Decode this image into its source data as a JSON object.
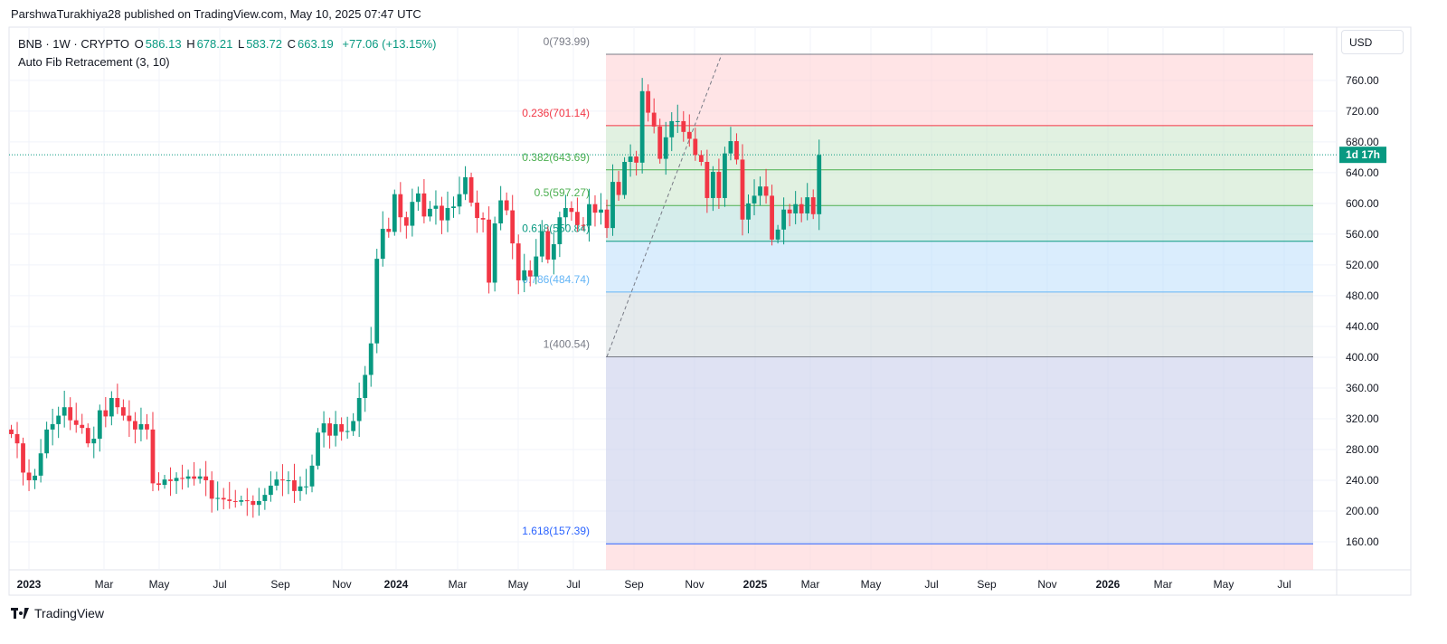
{
  "publisher": "ParshwaTurakhiya28 published on TradingView.com, May 10, 2025 07:47 UTC",
  "legend": {
    "symbol": "BNB · 1W · CRYPTO",
    "open_label": "O",
    "open": "586.13",
    "high_label": "H",
    "high": "678.21",
    "low_label": "L",
    "low": "583.72",
    "close_label": "C",
    "close": "663.19",
    "change": "+77.06 (+13.15%)",
    "indicator": "Auto Fib Retracement (3, 10)"
  },
  "currency": "USD",
  "countdown": "1d 17h",
  "footer_brand": "TradingView",
  "colors": {
    "up": "#089981",
    "down": "#f23645",
    "grid": "#f0f3fa",
    "text": "#131722"
  },
  "chart_data": {
    "type": "candlestick",
    "interval": "1W",
    "ylim": [
      120,
      800
    ],
    "yticks": [
      160,
      200,
      240,
      280,
      320,
      360,
      400,
      440,
      480,
      520,
      560,
      600,
      640,
      680,
      720,
      760
    ],
    "x_tick_labels": [
      "2023",
      "Mar",
      "May",
      "Jul",
      "Sep",
      "Nov",
      "2024",
      "Mar",
      "May",
      "Jul",
      "Sep",
      "Nov",
      "2025",
      "Mar",
      "May",
      "Jul",
      "Sep",
      "Nov",
      "2026",
      "Mar",
      "May",
      "Jul"
    ],
    "current_price": 663.19,
    "candles": [
      [
        306,
        300
      ],
      [
        300,
        288
      ],
      [
        288,
        250
      ],
      [
        250,
        240
      ],
      [
        240,
        246
      ],
      [
        246,
        275
      ],
      [
        275,
        306
      ],
      [
        306,
        313
      ],
      [
        313,
        324
      ],
      [
        324,
        335
      ],
      [
        335,
        318
      ],
      [
        318,
        312
      ],
      [
        312,
        308
      ],
      [
        308,
        288
      ],
      [
        288,
        294
      ],
      [
        294,
        331
      ],
      [
        331,
        323
      ],
      [
        323,
        347
      ],
      [
        347,
        335
      ],
      [
        335,
        324
      ],
      [
        324,
        317
      ],
      [
        317,
        306
      ],
      [
        306,
        313
      ],
      [
        313,
        306
      ],
      [
        306,
        236
      ],
      [
        236,
        234
      ],
      [
        234,
        241
      ],
      [
        241,
        239
      ],
      [
        239,
        243
      ],
      [
        243,
        242
      ],
      [
        242,
        245
      ],
      [
        245,
        242
      ],
      [
        242,
        245
      ],
      [
        245,
        240
      ],
      [
        240,
        216
      ],
      [
        216,
        217
      ],
      [
        217,
        215
      ],
      [
        215,
        213
      ],
      [
        213,
        212
      ],
      [
        212,
        214
      ],
      [
        214,
        213
      ],
      [
        213,
        208
      ],
      [
        208,
        213
      ],
      [
        213,
        221
      ],
      [
        221,
        233
      ],
      [
        233,
        241
      ],
      [
        241,
        240
      ],
      [
        240,
        240
      ],
      [
        240,
        226
      ],
      [
        226,
        232
      ],
      [
        232,
        232
      ],
      [
        232,
        259
      ],
      [
        259,
        302
      ],
      [
        302,
        314
      ],
      [
        314,
        298
      ],
      [
        298,
        313
      ],
      [
        313,
        303
      ],
      [
        303,
        304
      ],
      [
        304,
        317
      ],
      [
        317,
        347
      ],
      [
        347,
        377
      ],
      [
        377,
        418
      ],
      [
        418,
        528
      ],
      [
        528,
        567
      ],
      [
        567,
        563
      ],
      [
        563,
        612
      ],
      [
        612,
        582
      ],
      [
        582,
        571
      ],
      [
        571,
        602
      ],
      [
        602,
        613
      ],
      [
        613,
        583
      ],
      [
        583,
        593
      ],
      [
        593,
        597
      ],
      [
        597,
        578
      ],
      [
        578,
        594
      ],
      [
        594,
        596
      ],
      [
        596,
        612
      ],
      [
        612,
        634
      ],
      [
        634,
        601
      ],
      [
        601,
        581
      ],
      [
        581,
        579
      ],
      [
        579,
        497
      ],
      [
        497,
        574
      ],
      [
        574,
        604
      ],
      [
        604,
        591
      ],
      [
        591,
        548
      ],
      [
        548,
        500
      ],
      [
        500,
        513
      ],
      [
        513,
        505
      ],
      [
        505,
        531
      ],
      [
        531,
        564
      ],
      [
        564,
        527
      ],
      [
        527,
        547
      ],
      [
        547,
        582
      ],
      [
        582,
        594
      ],
      [
        594,
        589
      ],
      [
        589,
        572
      ],
      [
        572,
        571
      ],
      [
        571,
        599
      ],
      [
        599,
        588
      ],
      [
        588,
        592
      ],
      [
        592,
        568
      ],
      [
        568,
        628
      ],
      [
        628,
        611
      ],
      [
        611,
        654
      ],
      [
        654,
        661
      ],
      [
        661,
        653
      ],
      [
        653,
        746
      ],
      [
        746,
        718
      ],
      [
        718,
        700
      ],
      [
        700,
        658
      ],
      [
        658,
        686
      ],
      [
        686,
        707
      ],
      [
        707,
        707
      ],
      [
        707,
        693
      ],
      [
        693,
        684
      ],
      [
        684,
        663
      ],
      [
        663,
        654
      ],
      [
        654,
        607
      ],
      [
        607,
        641
      ],
      [
        641,
        607
      ],
      [
        607,
        665
      ],
      [
        665,
        681
      ],
      [
        681,
        657
      ],
      [
        657,
        579
      ],
      [
        579,
        600
      ],
      [
        600,
        610
      ],
      [
        610,
        622
      ],
      [
        622,
        610
      ],
      [
        610,
        553
      ],
      [
        553,
        566
      ],
      [
        566,
        592
      ],
      [
        592,
        587
      ],
      [
        587,
        599
      ],
      [
        599,
        587
      ],
      [
        587,
        608
      ],
      [
        608,
        586
      ],
      [
        586,
        663
      ]
    ],
    "fibonacci": [
      {
        "ratio": "0",
        "price": 793.99,
        "label": "0(793.99)",
        "color": "#787b86",
        "fill": "#ffcdd2"
      },
      {
        "ratio": "0.236",
        "price": 701.14,
        "label": "0.236(701.14)",
        "color": "#f23645",
        "fill": "#c8e6c9"
      },
      {
        "ratio": "0.382",
        "price": 643.69,
        "label": "0.382(643.69)",
        "color": "#4caf50",
        "fill": "#c8e6c9"
      },
      {
        "ratio": "0.5",
        "price": 597.27,
        "label": "0.5(597.27)",
        "color": "#4caf50",
        "fill": "#b2dfdb"
      },
      {
        "ratio": "0.618",
        "price": 550.84,
        "label": "0.618(550.84)",
        "color": "#089981",
        "fill": "#bbdefb"
      },
      {
        "ratio": "0.786",
        "price": 484.74,
        "label": "0.786(484.74)",
        "color": "#64b5f6",
        "fill": "#cfd8dc"
      },
      {
        "ratio": "1",
        "price": 400.54,
        "label": "1(400.54)",
        "color": "#787b86",
        "fill": "#c5cae9"
      },
      {
        "ratio": "1.618",
        "price": 157.39,
        "label": "1.618(157.39)",
        "color": "#2962ff",
        "fill": null
      }
    ]
  }
}
